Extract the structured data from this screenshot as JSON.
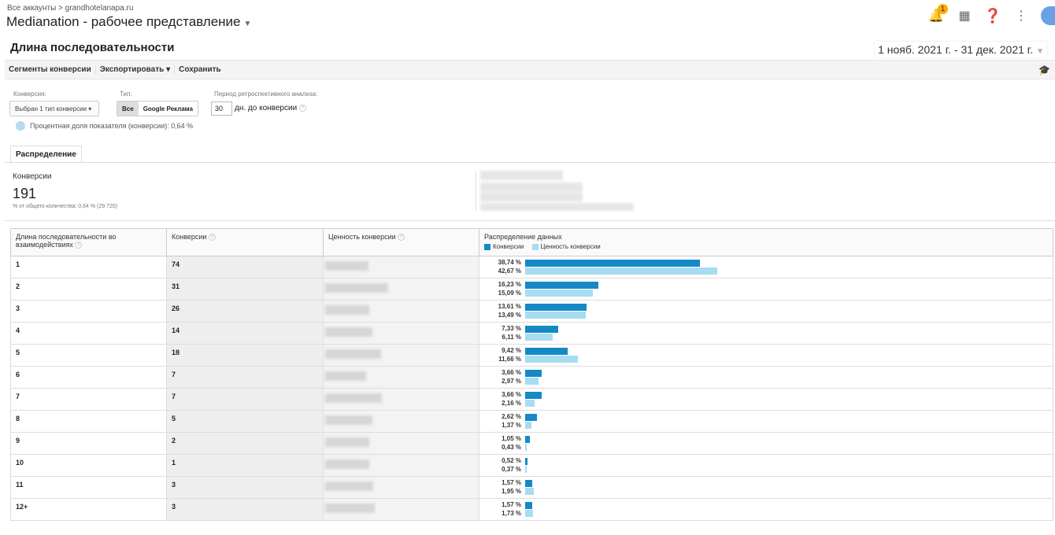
{
  "header": {
    "breadcrumb": "Все аккаунты > grandhotelanapa.ru",
    "view_name": "Medianation - рабочее представление",
    "notification_count": "1",
    "icons": [
      "bell-icon",
      "apps-grid-icon",
      "help-icon",
      "more-vert-icon",
      "avatar"
    ]
  },
  "report": {
    "title": "Длина последовательности",
    "date_range": "1 нояб. 2021 г. - 31 дек. 2021 г."
  },
  "toolbar": {
    "segments": "Сегменты конверсии",
    "export": "Экспортировать",
    "save": "Сохранить"
  },
  "filters": {
    "conversion_label": "Конверсия:",
    "conversion_value": "Выбран 1 тип конверсии",
    "type_label": "Тип:",
    "type_options": [
      "Все",
      "Google Реклама"
    ],
    "type_selected": "Все",
    "lookback_label": "Период ретроспективного анализа:",
    "lookback_value": "30",
    "lookback_suffix": "дн. до конверсии",
    "share_text": "Процентная доля показателя (конверсии): 0,64 %"
  },
  "tabs": [
    {
      "label": "Распределение"
    }
  ],
  "summary": {
    "label": "Конверсии",
    "value": "191",
    "sub": "% от общего количества: 0,64 % (29 720)"
  },
  "table": {
    "headers": [
      "Длина последовательности во взаимодействиях",
      "Конверсии",
      "Ценность конверсии",
      "Распределение данных"
    ],
    "legend": [
      "Конверсии",
      "Ценность конверсии"
    ],
    "colors": {
      "conversions": "#1589c6",
      "value": "#a8dcf2"
    },
    "rows": [
      {
        "length": "1",
        "conversions": "74",
        "conv_pct": 38.74,
        "value_pct": 42.67,
        "conv_pct_label": "38,74 %",
        "value_pct_label": "42,67 %"
      },
      {
        "length": "2",
        "conversions": "31",
        "conv_pct": 16.23,
        "value_pct": 15.09,
        "conv_pct_label": "16,23 %",
        "value_pct_label": "15,09 %"
      },
      {
        "length": "3",
        "conversions": "26",
        "conv_pct": 13.61,
        "value_pct": 13.49,
        "conv_pct_label": "13,61 %",
        "value_pct_label": "13,49 %"
      },
      {
        "length": "4",
        "conversions": "14",
        "conv_pct": 7.33,
        "value_pct": 6.11,
        "conv_pct_label": "7,33 %",
        "value_pct_label": "6,11 %"
      },
      {
        "length": "5",
        "conversions": "18",
        "conv_pct": 9.42,
        "value_pct": 11.66,
        "conv_pct_label": "9,42 %",
        "value_pct_label": "11,66 %"
      },
      {
        "length": "6",
        "conversions": "7",
        "conv_pct": 3.66,
        "value_pct": 2.97,
        "conv_pct_label": "3,66 %",
        "value_pct_label": "2,97 %"
      },
      {
        "length": "7",
        "conversions": "7",
        "conv_pct": 3.66,
        "value_pct": 2.16,
        "conv_pct_label": "3,66 %",
        "value_pct_label": "2,16 %"
      },
      {
        "length": "8",
        "conversions": "5",
        "conv_pct": 2.62,
        "value_pct": 1.37,
        "conv_pct_label": "2,62 %",
        "value_pct_label": "1,37 %"
      },
      {
        "length": "9",
        "conversions": "2",
        "conv_pct": 1.05,
        "value_pct": 0.43,
        "conv_pct_label": "1,05 %",
        "value_pct_label": "0,43 %"
      },
      {
        "length": "10",
        "conversions": "1",
        "conv_pct": 0.52,
        "value_pct": 0.37,
        "conv_pct_label": "0,52 %",
        "value_pct_label": "0,37 %"
      },
      {
        "length": "11",
        "conversions": "3",
        "conv_pct": 1.57,
        "value_pct": 1.95,
        "conv_pct_label": "1,57 %",
        "value_pct_label": "1,95 %"
      },
      {
        "length": "12+",
        "conversions": "3",
        "conv_pct": 1.57,
        "value_pct": 1.73,
        "conv_pct_label": "1,57 %",
        "value_pct_label": "1,73 %"
      }
    ]
  }
}
